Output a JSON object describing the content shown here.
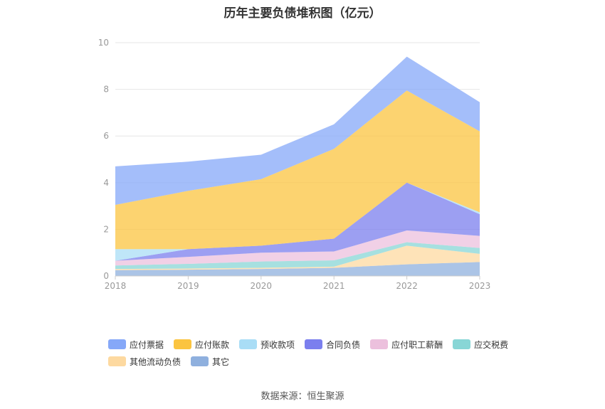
{
  "chart_data": {
    "type": "area",
    "title": "历年主要负债堆积图（亿元）",
    "x": [
      "2018",
      "2019",
      "2020",
      "2021",
      "2022",
      "2023"
    ],
    "ylim": [
      0,
      10
    ],
    "yticks": [
      0,
      2,
      4,
      6,
      8,
      10
    ],
    "grid": true,
    "legend_position": "bottom",
    "stacked": true,
    "series": [
      {
        "name": "其它",
        "color": "#8fb0de",
        "values": [
          0.25,
          0.27,
          0.3,
          0.35,
          0.5,
          0.6
        ]
      },
      {
        "name": "其他流动负债",
        "color": "#fdd9a0",
        "values": [
          0.05,
          0.05,
          0.05,
          0.05,
          0.8,
          0.35
        ]
      },
      {
        "name": "应交税费",
        "color": "#88d6d6",
        "values": [
          0.15,
          0.2,
          0.27,
          0.27,
          0.15,
          0.25
        ]
      },
      {
        "name": "应付职工薪酬",
        "color": "#ecc0dd",
        "values": [
          0.2,
          0.3,
          0.38,
          0.38,
          0.5,
          0.52
        ]
      },
      {
        "name": "合同负债",
        "color": "#7b7fee",
        "values": [
          0.0,
          0.33,
          0.3,
          0.55,
          2.05,
          0.93
        ]
      },
      {
        "name": "预收款项",
        "color": "#a9ddf6",
        "values": [
          0.5,
          0.0,
          0.0,
          0.0,
          0.0,
          0.08
        ]
      },
      {
        "name": "应付账款",
        "color": "#fbc440",
        "values": [
          1.9,
          2.5,
          2.85,
          3.85,
          3.95,
          3.47
        ]
      },
      {
        "name": "应付票据",
        "color": "#86a8f8",
        "values": [
          1.65,
          1.25,
          1.05,
          1.05,
          1.45,
          1.25
        ]
      }
    ],
    "legend_order": [
      "应付票据",
      "应付账款",
      "预收款项",
      "合同负债",
      "应付职工薪酬",
      "应交税费",
      "其他流动负债",
      "其它"
    ]
  },
  "footer": {
    "source": "数据来源：恒生聚源"
  }
}
